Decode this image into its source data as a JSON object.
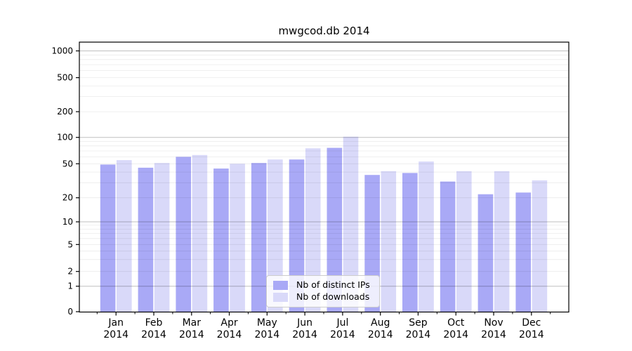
{
  "figure": {
    "title": "mwgcod.db 2014"
  },
  "chart_data": {
    "type": "bar",
    "title": "mwgcod.db 2014",
    "categories": [
      "Jan",
      "Feb",
      "Mar",
      "Apr",
      "May",
      "Jun",
      "Jul",
      "Aug",
      "Sep",
      "Oct",
      "Nov",
      "Dec"
    ],
    "x_year_label": "2014",
    "series": [
      {
        "name": "Nb of distinct IPs",
        "color": "#a9a9f6",
        "values": [
          49,
          45,
          60,
          44,
          51,
          56,
          76,
          37,
          39,
          31,
          22,
          23
        ]
      },
      {
        "name": "Nb of downloads",
        "color": "#d9d9f9",
        "values": [
          55,
          51,
          63,
          50,
          56,
          75,
          102,
          41,
          53,
          41,
          41,
          32
        ]
      }
    ],
    "xlabel": "",
    "ylabel": "",
    "yscale": "symlog",
    "yticks": [
      0,
      1,
      2,
      5,
      10,
      20,
      50,
      100,
      200,
      500,
      1000
    ],
    "ylim": [
      0,
      1200
    ],
    "grid": "both",
    "legend_position": "lower center",
    "colors": {
      "major_grid": "rgba(0,0,0,0.25)",
      "minor_grid": "rgba(0,0,0,0.08)",
      "spine": "#000000",
      "tick_label": "#000000"
    }
  }
}
